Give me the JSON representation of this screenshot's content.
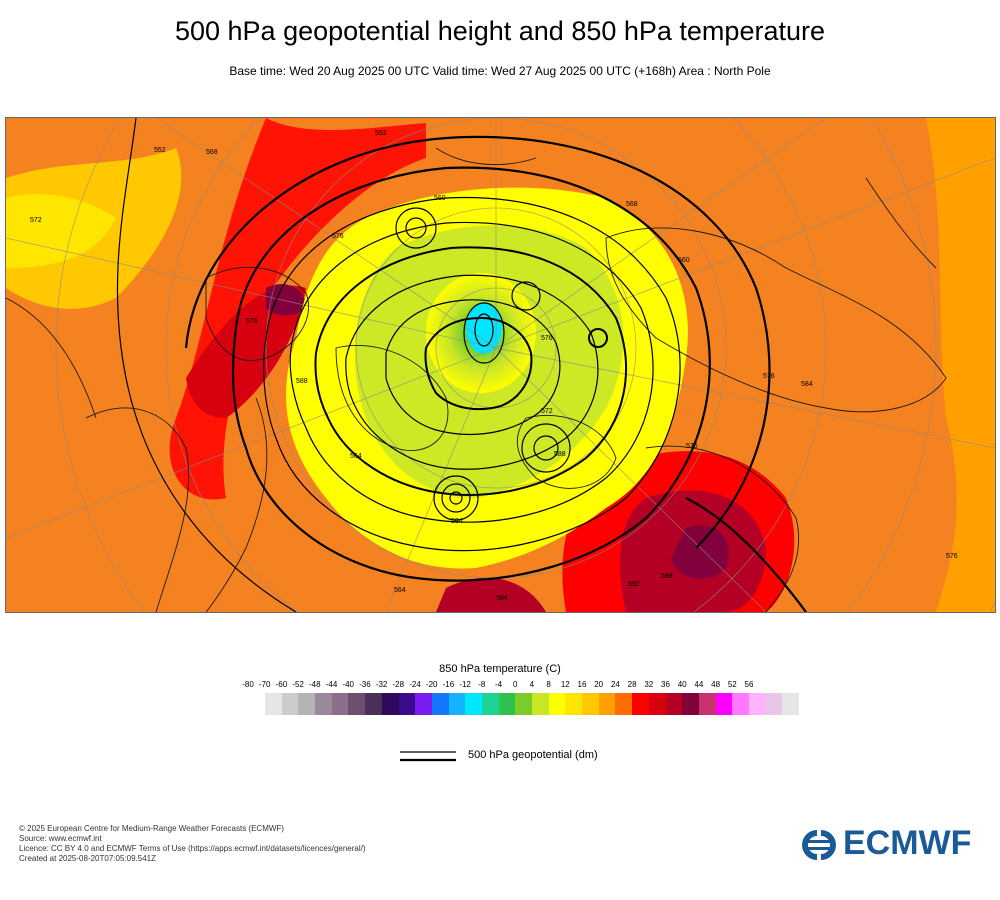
{
  "title": "500 hPa geopotential height and 850 hPa temperature",
  "subtitle": "Base time: Wed 20 Aug 2025 00 UTC Valid time: Wed 27 Aug 2025 00 UTC (+168h) Area : North Pole",
  "colorbar": {
    "title": "850 hPa temperature (C)",
    "ticks": [
      "-80",
      "-70",
      "-60",
      "-52",
      "-48",
      "-44",
      "-40",
      "-36",
      "-32",
      "-28",
      "-24",
      "-20",
      "-16",
      "-12",
      "-8",
      "-4",
      "0",
      "4",
      "8",
      "12",
      "16",
      "20",
      "24",
      "28",
      "32",
      "36",
      "40",
      "44",
      "48",
      "52",
      "56"
    ],
    "colors": [
      "#e6e6e6",
      "#cccccc",
      "#b3b3b3",
      "#998899",
      "#8c6f8c",
      "#6e4f6e",
      "#4a2f5a",
      "#2e0a5c",
      "#3c0a8c",
      "#7a1cf0",
      "#1478ff",
      "#14b4ff",
      "#00e6ff",
      "#1ed296",
      "#30c050",
      "#7acc28",
      "#c8e628",
      "#ffff00",
      "#ffe600",
      "#ffc800",
      "#ffa000",
      "#ff6e00",
      "#ff0000",
      "#d7000f",
      "#b40024",
      "#82003c",
      "#c8326e",
      "#ff00ff",
      "#ff78ff",
      "#ffb4ff",
      "#e6c8e6",
      "#e6e6e6"
    ]
  },
  "legend": {
    "label": "500 hPa geopotential (dm)"
  },
  "footer": {
    "line1": "© 2025 European Centre for Medium-Range Weather Forecasts (ECMWF)",
    "line2": "Source: www.ecmwf.int",
    "line3": "Licence: CC BY 4.0 and ECMWF Terms of Use (https://apps.ecmwf.int/datasets/licences/general/)",
    "line4": "Created at 2025-08-20T07:05:09.541Z"
  },
  "logo": {
    "text": "ECMWF",
    "color": "#1a5a96"
  },
  "map": {
    "contour_labels": [
      "552",
      "576",
      "588",
      "564",
      "576",
      "584",
      "572",
      "576",
      "568",
      "560",
      "576",
      "584",
      "588",
      "592",
      "584",
      "576",
      "552",
      "568",
      "560",
      "576",
      "564",
      "572",
      "588"
    ]
  }
}
